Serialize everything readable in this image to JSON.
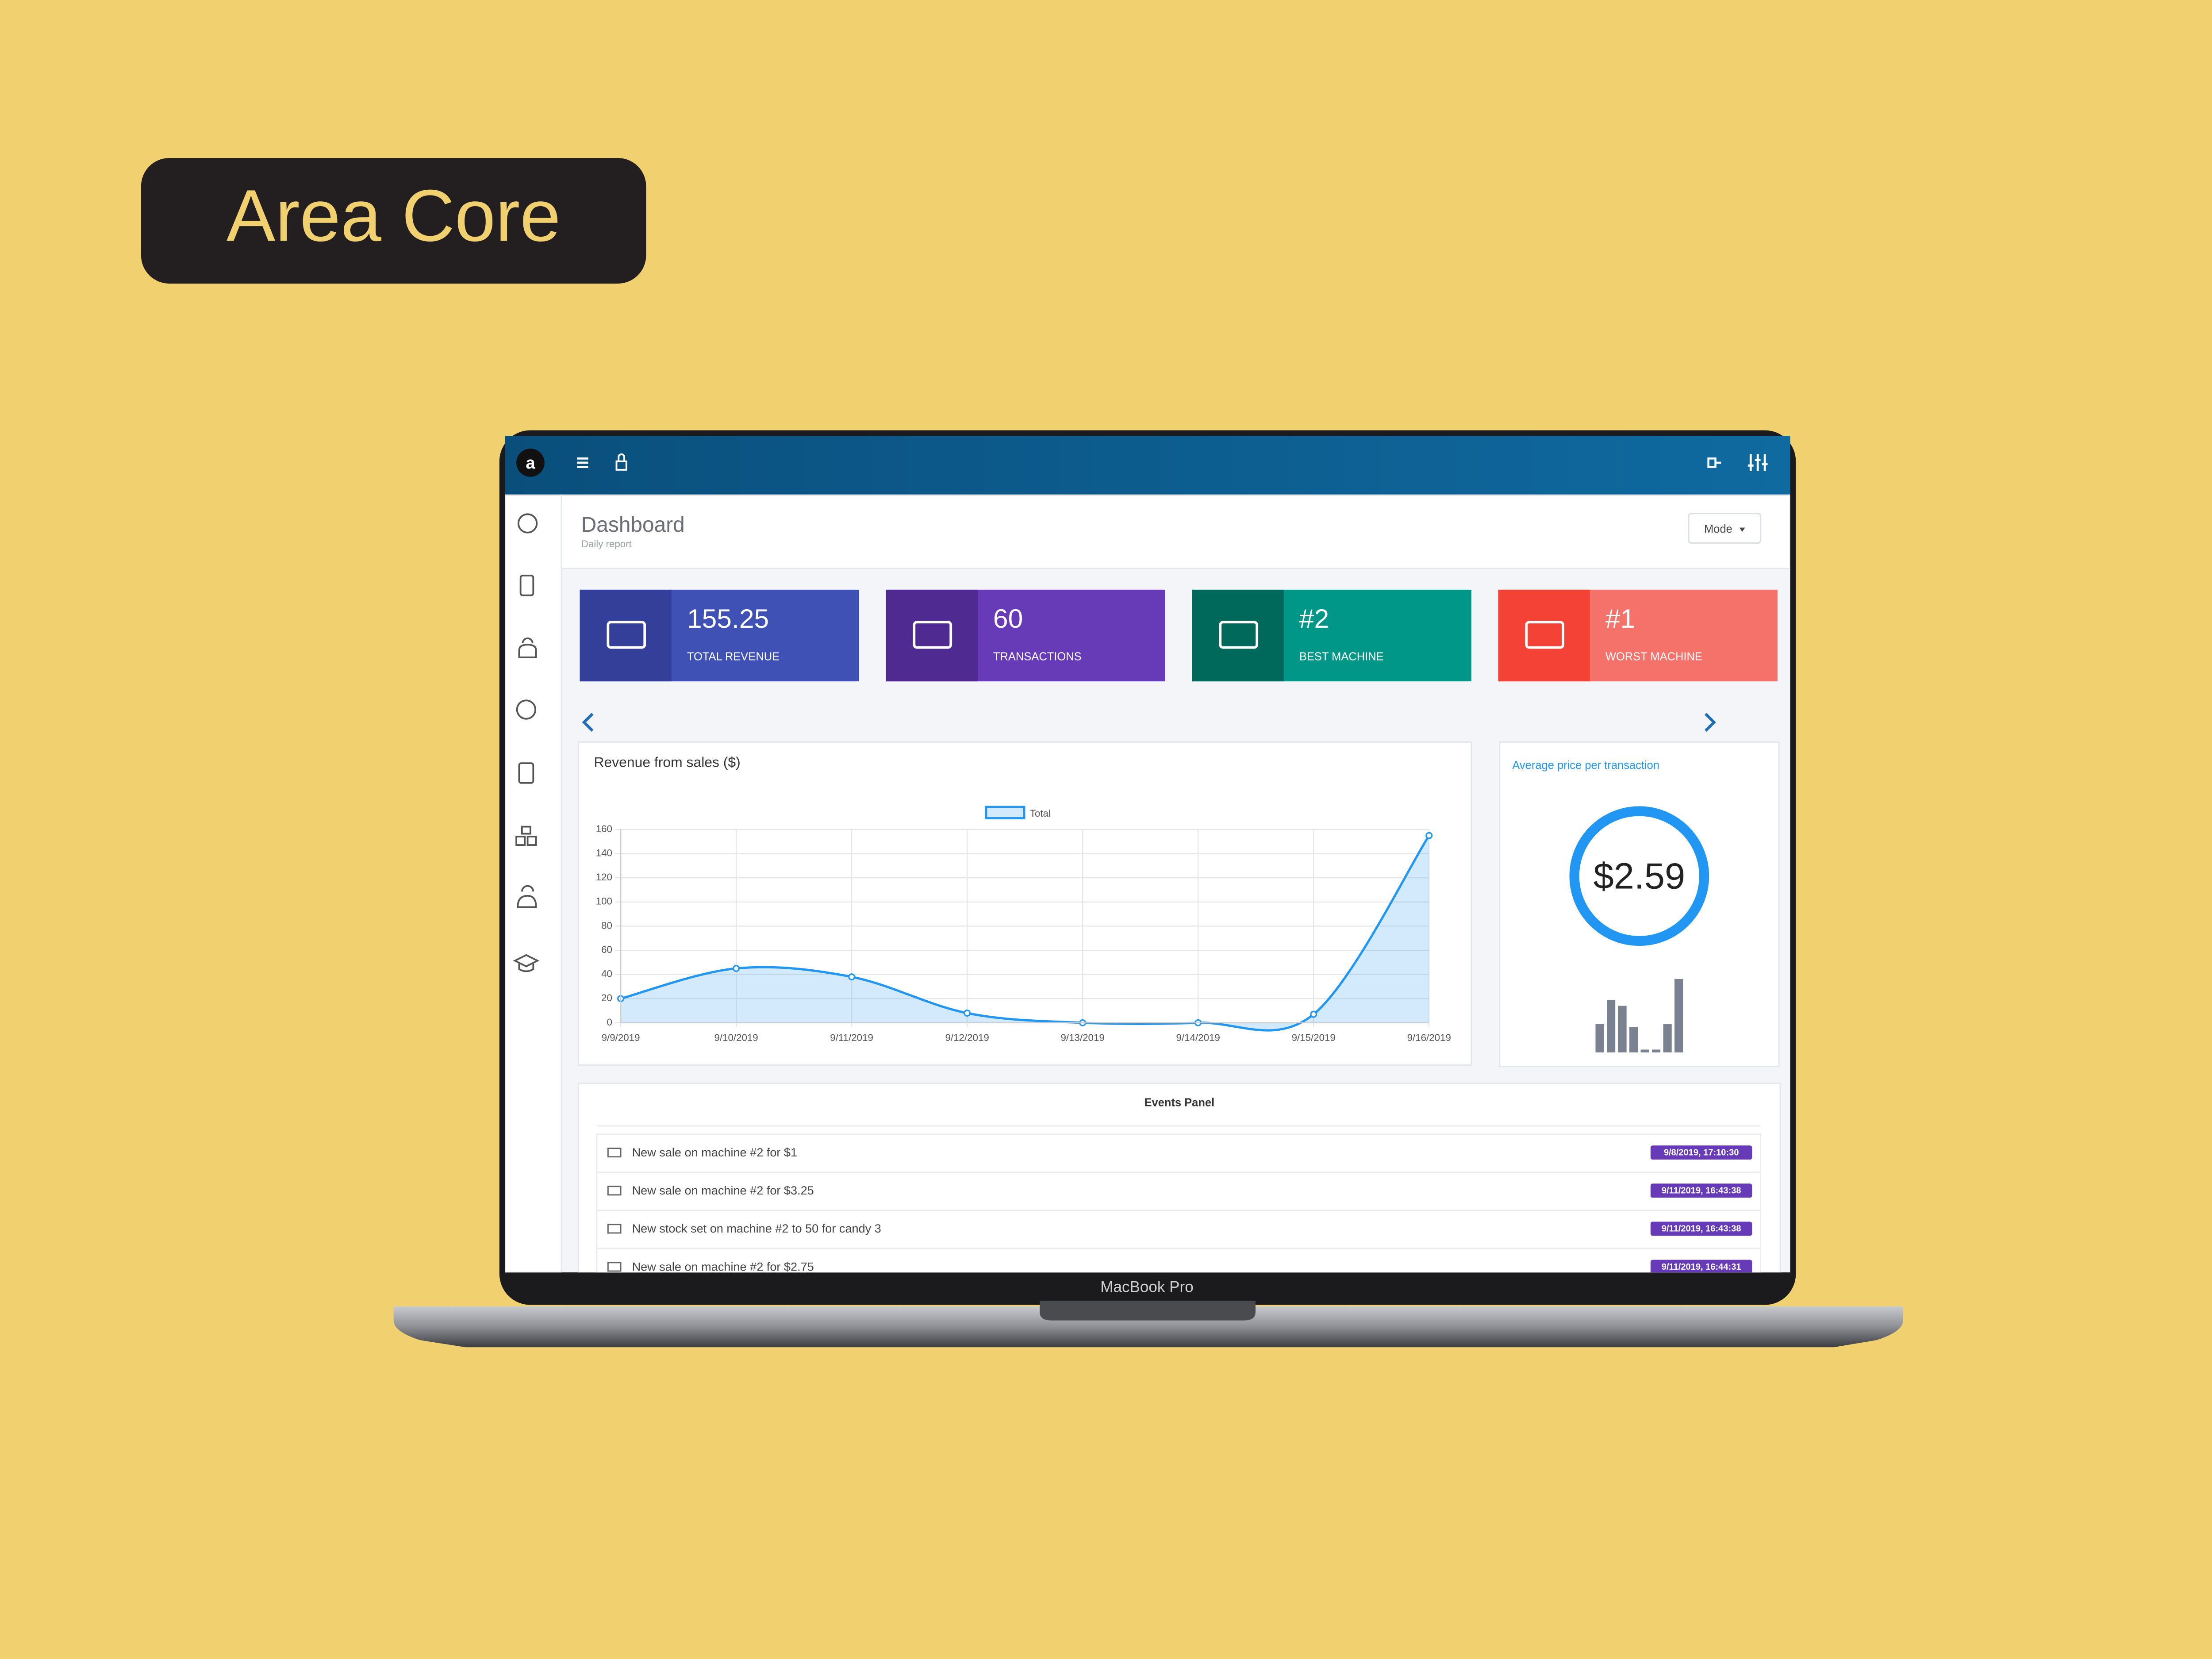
{
  "badge": "Area Core",
  "header": {
    "title": "Dashboard",
    "subtitle": "Daily report",
    "mode_button": "Mode"
  },
  "cards": [
    {
      "value": "155.25",
      "label": "TOTAL REVENUE",
      "color": "#3f51b5",
      "icon_color": "#343f9a"
    },
    {
      "value": "60",
      "label": "TRANSACTIONS",
      "color": "#673ab7",
      "icon_color": "#4e2a91"
    },
    {
      "value": "#2",
      "label": "BEST MACHINE",
      "color": "#009688",
      "icon_color": "#00695c"
    },
    {
      "value": "#1",
      "label": "WORST MACHINE",
      "color": "#f5726a",
      "icon_color": "#f44336"
    }
  ],
  "chart_data": [
    {
      "type": "line",
      "title": "Revenue from sales ($)",
      "categories": [
        "9/9/2019",
        "9/10/2019",
        "9/11/2019",
        "9/12/2019",
        "9/13/2019",
        "9/14/2019",
        "9/15/2019",
        "9/16/2019"
      ],
      "series": [
        {
          "name": "Total",
          "color": "#2196f3",
          "values": [
            20,
            45,
            38,
            8,
            0,
            0,
            7,
            155
          ]
        }
      ],
      "ylim": [
        0,
        160
      ],
      "yticks": [
        0,
        20,
        40,
        60,
        80,
        100,
        120,
        140,
        160
      ],
      "grid": true,
      "area": true
    },
    {
      "type": "bar",
      "title": "Average price per transaction",
      "headline": "$2.59",
      "values": [
        20,
        37,
        33,
        18,
        2,
        2,
        20,
        52
      ],
      "color": "#7a8190",
      "ylim": [
        0,
        55
      ]
    }
  ],
  "events": {
    "title": "Events Panel",
    "rows": [
      {
        "text": "New sale on machine #2 for $1",
        "time": "9/8/2019, 17:10:30"
      },
      {
        "text": "New sale on machine #2 for $3.25",
        "time": "9/11/2019, 16:43:38"
      },
      {
        "text": "New stock set on machine #2 to 50 for candy 3",
        "time": "9/11/2019, 16:43:38"
      },
      {
        "text": "New sale on machine #2 for $2.75",
        "time": "9/11/2019, 16:44:31"
      }
    ]
  },
  "laptop_label": "MacBook Pro"
}
